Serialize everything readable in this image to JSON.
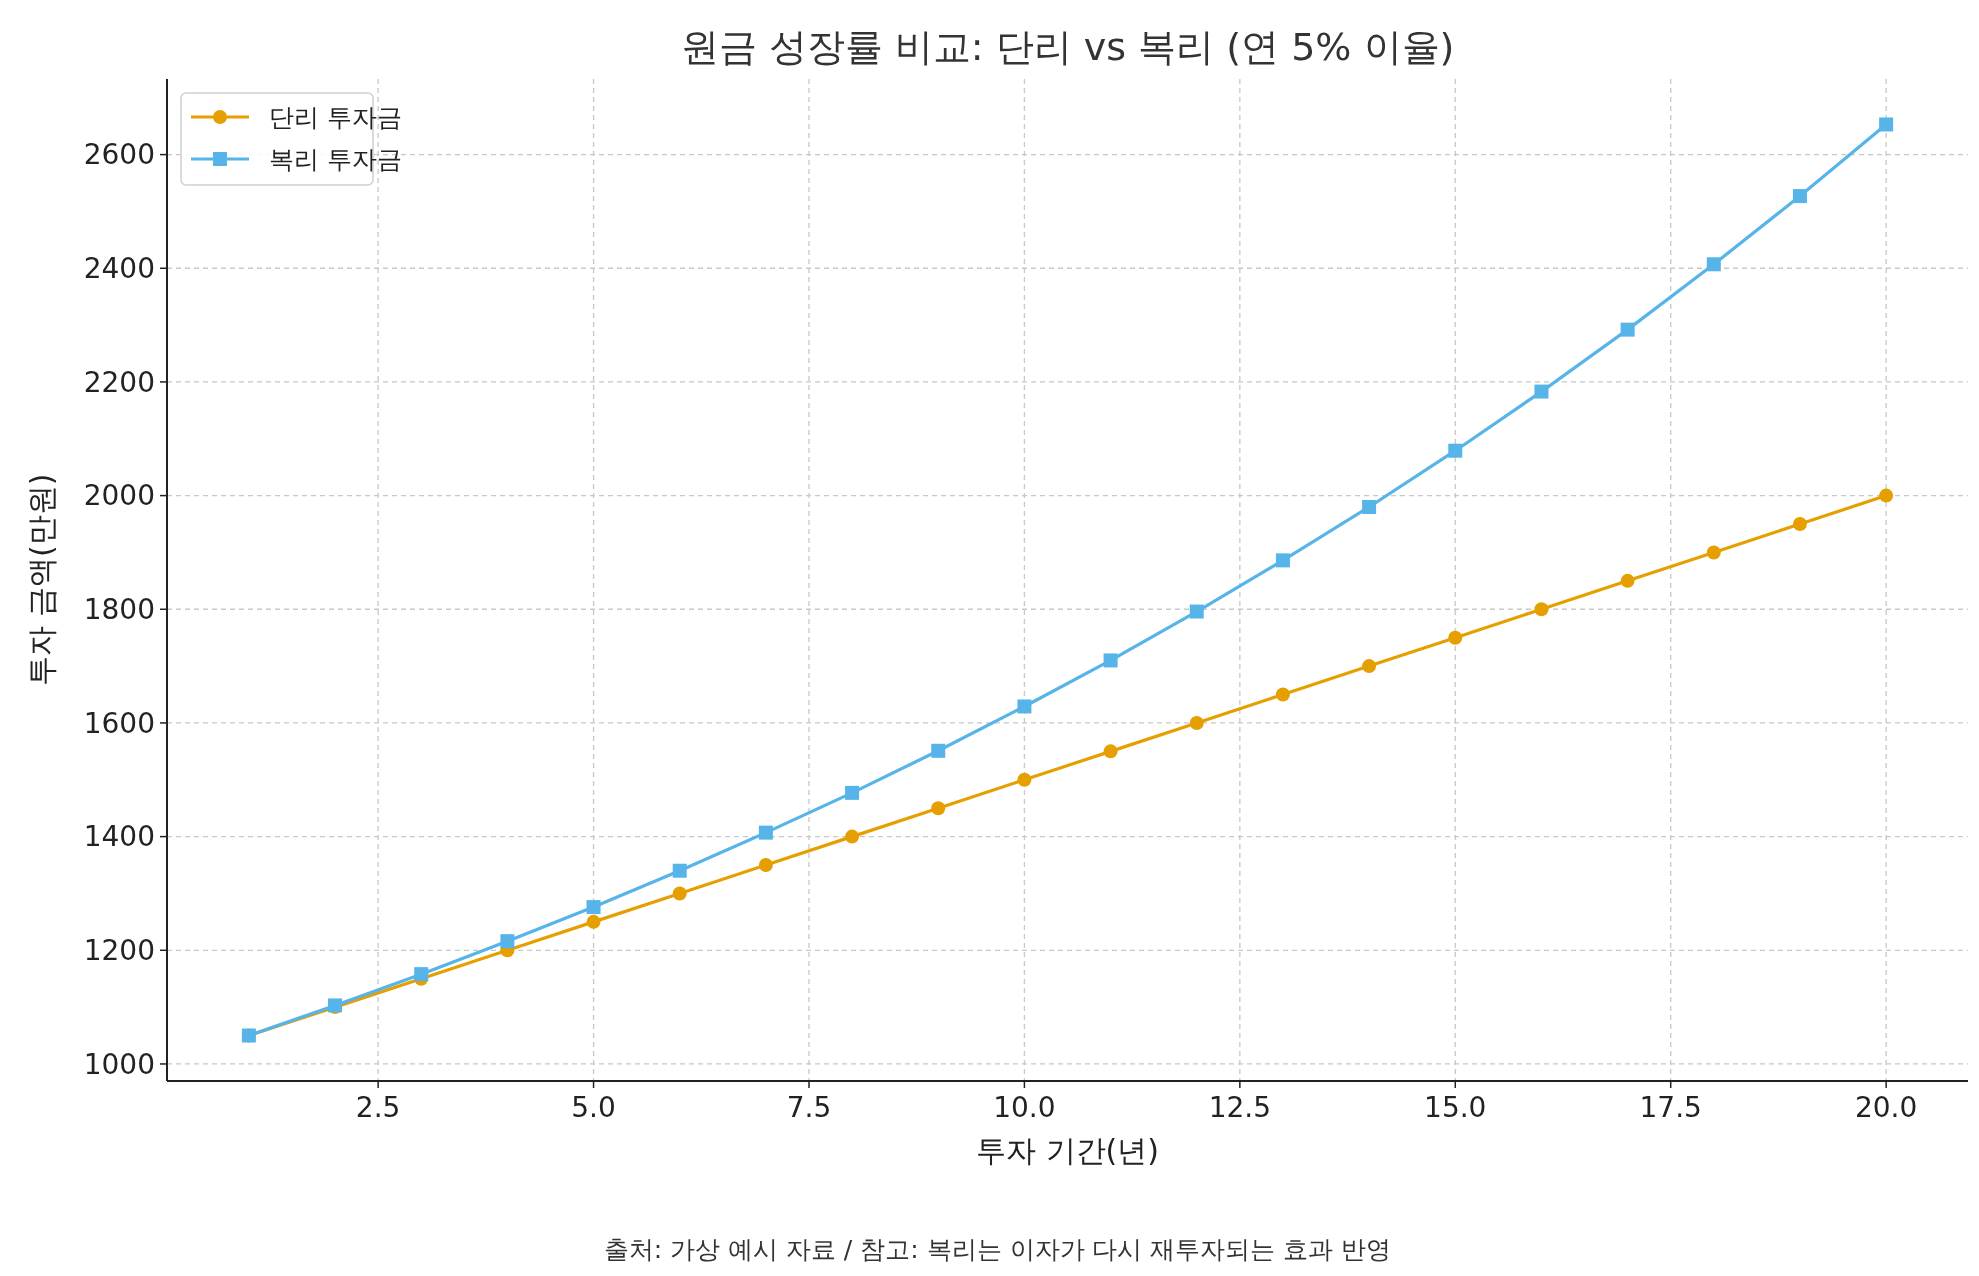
{
  "chart_data": {
    "type": "line",
    "title": "원금 성장률 비교: 단리 vs 복리 (연 5% 이율)",
    "xlabel": "투자 기간(년)",
    "ylabel": "투자 금액(만원)",
    "x": [
      1,
      2,
      3,
      4,
      5,
      6,
      7,
      8,
      9,
      10,
      11,
      12,
      13,
      14,
      15,
      16,
      17,
      18,
      19,
      20
    ],
    "series": [
      {
        "name": "단리 투자금",
        "color": "#e69f00",
        "marker": "circle",
        "values": [
          1050,
          1100,
          1150,
          1200,
          1250,
          1300,
          1350,
          1400,
          1450,
          1500,
          1550,
          1600,
          1650,
          1700,
          1750,
          1800,
          1850,
          1900,
          1950,
          2000
        ]
      },
      {
        "name": "복리 투자금",
        "color": "#56b4e9",
        "marker": "square",
        "values": [
          1050,
          1103,
          1158,
          1216,
          1276,
          1340,
          1407,
          1477,
          1551,
          1629,
          1710,
          1796,
          1886,
          1980,
          2079,
          2183,
          2292,
          2407,
          2527,
          2653
        ]
      }
    ],
    "xlim": [
      0.05,
      20.95
    ],
    "ylim": [
      970,
      2733
    ],
    "xticks": [
      {
        "value": 2.5,
        "label": "2.5"
      },
      {
        "value": 5,
        "label": "5.0"
      },
      {
        "value": 7.5,
        "label": "7.5"
      },
      {
        "value": 10,
        "label": "10.0"
      },
      {
        "value": 12.5,
        "label": "12.5"
      },
      {
        "value": 15,
        "label": "15.0"
      },
      {
        "value": 17.5,
        "label": "17.5"
      },
      {
        "value": 20,
        "label": "20.0"
      }
    ],
    "yticks": [
      1000,
      1200,
      1400,
      1600,
      1800,
      2000,
      2200,
      2400,
      2600
    ],
    "grid": true,
    "legend": "top left",
    "line_style": "solid",
    "annotations": [
      "출처: 가상 예시 자료 / 참고: 복리는 이자가 다시 재투자되는 효과 반영"
    ]
  }
}
